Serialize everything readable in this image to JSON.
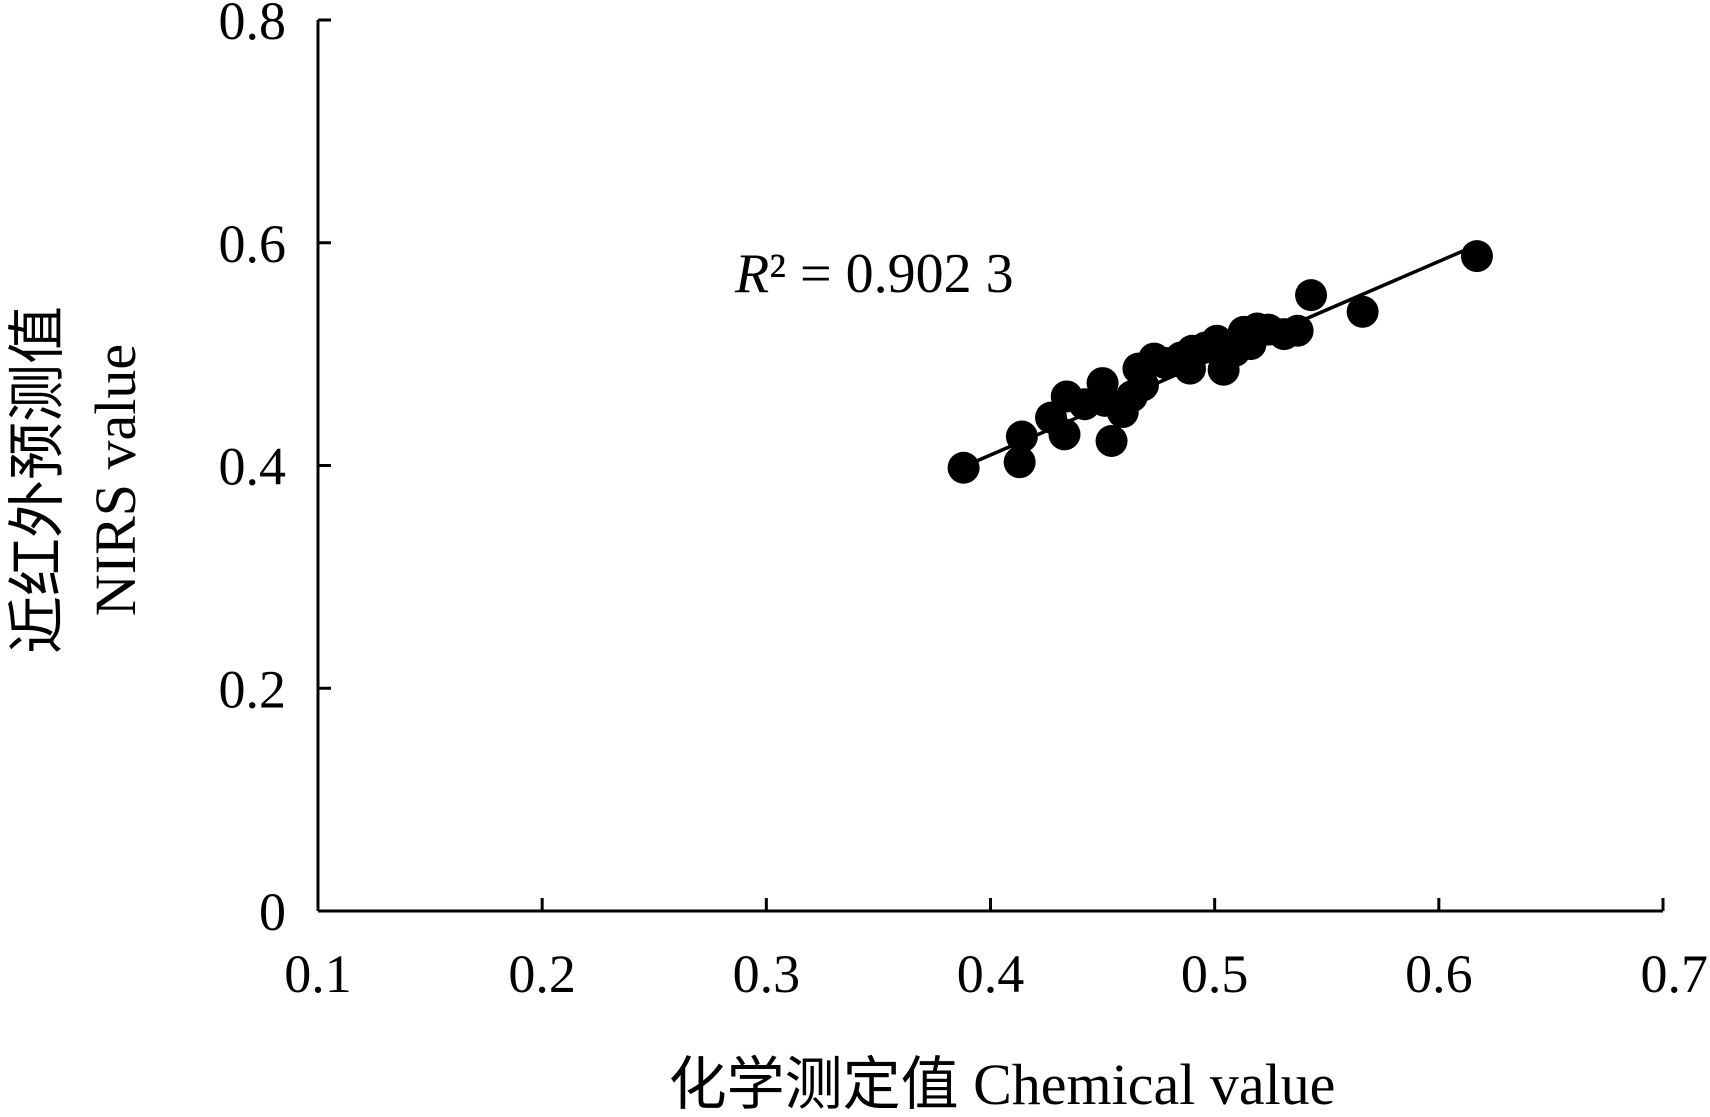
{
  "chart_data": {
    "type": "scatter",
    "xlabel": "化学测定值 Chemical value",
    "ylabel_line1": "近红外预测值",
    "ylabel_line2": "NIRS value",
    "xlim": [
      0.1,
      0.7
    ],
    "ylim": [
      0,
      0.8
    ],
    "x_ticks": [
      0.1,
      0.2,
      0.3,
      0.4,
      0.5,
      0.6,
      0.7
    ],
    "x_tick_labels": [
      "0.1",
      "0.2",
      "0.3",
      "0.4",
      "0.5",
      "0.6",
      "0.7"
    ],
    "y_ticks": [
      0,
      0.2,
      0.4,
      0.6,
      0.8
    ],
    "y_tick_labels": [
      "0",
      "0.2",
      "0.4",
      "0.6",
      "0.8"
    ],
    "grid": false,
    "annotation": {
      "r_symbol": "R",
      "r_suffix": "² = 0.902 3"
    },
    "trendline": {
      "x_start": 0.388,
      "y_start": 0.399,
      "x_end": 0.617,
      "y_end": 0.598
    },
    "points": [
      {
        "x": 0.388,
        "y": 0.398
      },
      {
        "x": 0.413,
        "y": 0.403
      },
      {
        "x": 0.414,
        "y": 0.426
      },
      {
        "x": 0.427,
        "y": 0.443
      },
      {
        "x": 0.433,
        "y": 0.428
      },
      {
        "x": 0.434,
        "y": 0.462
      },
      {
        "x": 0.442,
        "y": 0.455
      },
      {
        "x": 0.45,
        "y": 0.474
      },
      {
        "x": 0.451,
        "y": 0.458
      },
      {
        "x": 0.454,
        "y": 0.422
      },
      {
        "x": 0.459,
        "y": 0.448
      },
      {
        "x": 0.463,
        "y": 0.462
      },
      {
        "x": 0.466,
        "y": 0.487
      },
      {
        "x": 0.468,
        "y": 0.472
      },
      {
        "x": 0.473,
        "y": 0.496
      },
      {
        "x": 0.478,
        "y": 0.492
      },
      {
        "x": 0.485,
        "y": 0.497
      },
      {
        "x": 0.489,
        "y": 0.487
      },
      {
        "x": 0.49,
        "y": 0.503
      },
      {
        "x": 0.496,
        "y": 0.506
      },
      {
        "x": 0.501,
        "y": 0.512
      },
      {
        "x": 0.504,
        "y": 0.486
      },
      {
        "x": 0.509,
        "y": 0.503
      },
      {
        "x": 0.513,
        "y": 0.52
      },
      {
        "x": 0.516,
        "y": 0.509
      },
      {
        "x": 0.519,
        "y": 0.523
      },
      {
        "x": 0.524,
        "y": 0.522
      },
      {
        "x": 0.531,
        "y": 0.518
      },
      {
        "x": 0.537,
        "y": 0.521
      },
      {
        "x": 0.543,
        "y": 0.553
      },
      {
        "x": 0.566,
        "y": 0.538
      },
      {
        "x": 0.617,
        "y": 0.588
      }
    ],
    "marker_color": "#000000"
  }
}
